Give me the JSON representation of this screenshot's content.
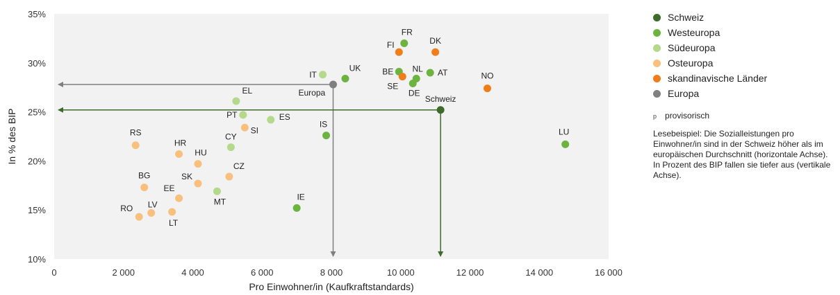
{
  "chart_data": {
    "type": "scatter",
    "xlabel": "Pro Einwohner/in (Kaufkraftstandards)",
    "ylabel": "In % des BIP",
    "xlim": [
      0,
      16000
    ],
    "ylim": [
      10,
      35
    ],
    "x_ticks": [
      0,
      2000,
      4000,
      6000,
      8000,
      10000,
      12000,
      14000,
      16000
    ],
    "x_tick_labels": [
      "0",
      "2 000",
      "4 000",
      "6 000",
      "8 000",
      "10 000",
      "12 000",
      "14 000",
      "16 000"
    ],
    "y_ticks": [
      10,
      15,
      20,
      25,
      30,
      35
    ],
    "y_tick_labels": [
      "10%",
      "15%",
      "20%",
      "25%",
      "30%",
      "35%"
    ],
    "grid": false,
    "legend_position": "right",
    "series": [
      {
        "name": "Schweiz",
        "color": "#3e6b2a",
        "points": [
          {
            "label": "Schweiz",
            "x": 11150,
            "y": 25.2
          }
        ]
      },
      {
        "name": "Westeuropa",
        "color": "#6cb33f",
        "points": [
          {
            "label": "FR",
            "x": 10100,
            "y": 32.0
          },
          {
            "label": "BE",
            "x": 9950,
            "y": 29.1
          },
          {
            "label": "NL",
            "x": 10450,
            "y": 28.4
          },
          {
            "label": "AT",
            "x": 10850,
            "y": 29.0
          },
          {
            "label": "DE",
            "x": 10350,
            "y": 27.9
          },
          {
            "label": "UK",
            "x": 8400,
            "y": 28.4
          },
          {
            "label": "IS",
            "x": 7850,
            "y": 22.6
          },
          {
            "label": "IE",
            "x": 7000,
            "y": 15.2
          },
          {
            "label": "LU",
            "x": 14750,
            "y": 21.7
          }
        ]
      },
      {
        "name": "Südeuropa",
        "color": "#b5d98a",
        "points": [
          {
            "label": "IT",
            "x": 7750,
            "y": 28.8
          },
          {
            "label": "EL",
            "x": 5250,
            "y": 26.1
          },
          {
            "label": "PT",
            "x": 5450,
            "y": 24.7
          },
          {
            "label": "ES",
            "x": 6250,
            "y": 24.2
          },
          {
            "label": "CY",
            "x": 5100,
            "y": 21.4
          },
          {
            "label": "MT",
            "x": 4700,
            "y": 16.9
          }
        ]
      },
      {
        "name": "Osteuropa",
        "color": "#f8c07c",
        "points": [
          {
            "label": "RS",
            "x": 2350,
            "y": 21.6
          },
          {
            "label": "HR",
            "x": 3600,
            "y": 20.7
          },
          {
            "label": "HU",
            "x": 4150,
            "y": 19.7
          },
          {
            "label": "SI",
            "x": 5500,
            "y": 23.4
          },
          {
            "label": "CZ",
            "x": 5050,
            "y": 18.4
          },
          {
            "label": "SK",
            "x": 4150,
            "y": 17.7
          },
          {
            "label": "BG",
            "x": 2600,
            "y": 17.3
          },
          {
            "label": "EE",
            "x": 3600,
            "y": 16.2
          },
          {
            "label": "LV",
            "x": 2800,
            "y": 14.7
          },
          {
            "label": "RO",
            "x": 2450,
            "y": 14.3
          },
          {
            "label": "LT",
            "x": 3400,
            "y": 14.8
          }
        ]
      },
      {
        "name": "skandinavische Länder",
        "color": "#ef7d1a",
        "points": [
          {
            "label": "FI",
            "x": 9950,
            "y": 31.1
          },
          {
            "label": "DK",
            "x": 11000,
            "y": 31.1
          },
          {
            "label": "SE",
            "x": 10050,
            "y": 28.6
          },
          {
            "label": "NO",
            "x": 12500,
            "y": 27.4
          }
        ]
      },
      {
        "name": "Europa",
        "color": "#7f7f7f",
        "points": [
          {
            "label": "Europa",
            "x": 8050,
            "y": 27.8
          }
        ]
      }
    ],
    "reference_lines": [
      {
        "series": "Europa",
        "color": "#7f7f7f"
      },
      {
        "series": "Schweiz",
        "color": "#3e6b2a"
      }
    ]
  },
  "legend": {
    "items": [
      {
        "label": "Schweiz",
        "color": "#3e6b2a"
      },
      {
        "label": "Westeuropa",
        "color": "#6cb33f"
      },
      {
        "label": "Südeuropa",
        "color": "#b5d98a"
      },
      {
        "label": "Osteuropa",
        "color": "#f8c07c"
      },
      {
        "label": "skandinavische Länder",
        "color": "#ef7d1a"
      },
      {
        "label": "Europa",
        "color": "#7f7f7f"
      }
    ]
  },
  "notes": {
    "provisional_symbol": "p",
    "provisional_text": "provisorisch",
    "reading_example": "Lesebeispiel: Die Sozialleistungen pro Einwohner/in sind in der Schweiz höher als im europäischen Durchschnitt (horizontale Achse). In Prozent des BIP fallen sie tiefer aus (vertikale Achse)."
  }
}
